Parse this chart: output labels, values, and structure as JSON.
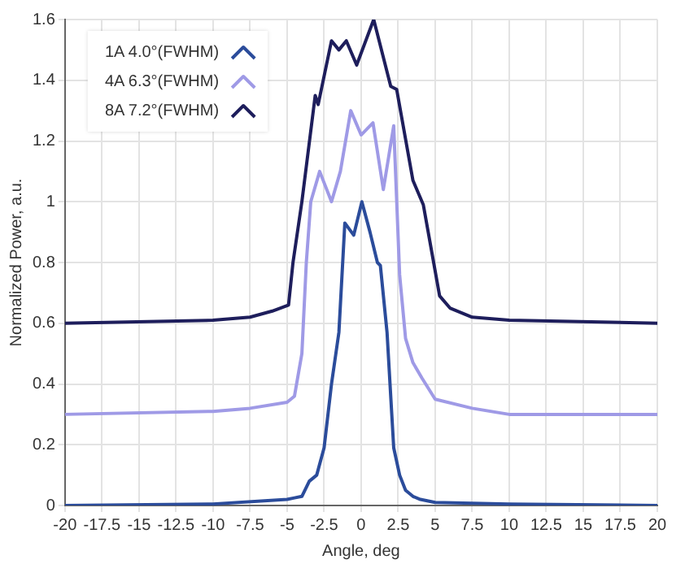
{
  "chart_data": {
    "type": "line",
    "xlabel": "Angle, deg",
    "ylabel": "Normalized Power, a.u.",
    "xlim": [
      -20,
      20
    ],
    "xticks": [
      -20,
      -17.5,
      -15,
      -12.5,
      -10,
      -7.5,
      -5,
      -2.5,
      0,
      2.5,
      5,
      7.5,
      10,
      12.5,
      15,
      17.5,
      20
    ],
    "ylim": [
      0,
      1.6
    ],
    "yticks": [
      0,
      0.2,
      0.4,
      0.6,
      0.8,
      1,
      1.2,
      1.4,
      1.6
    ],
    "grid": true,
    "legend": "top left",
    "marker": "none",
    "line_style": "solid",
    "series": [
      {
        "name": "1A 4.0°(FWHM)",
        "color": "#2b4c9b",
        "x": [
          -20,
          -10,
          -5,
          -4.5,
          -4,
          -3.5,
          -3,
          -2.5,
          -2,
          -1.5,
          -1.1,
          -0.5,
          0.05,
          0.6,
          1.1,
          1.3,
          1.75,
          2.2,
          2.6,
          3,
          3.5,
          4,
          5,
          10,
          20
        ],
        "values": [
          0,
          0.005,
          0.02,
          0.025,
          0.03,
          0.08,
          0.1,
          0.19,
          0.4,
          0.57,
          0.93,
          0.89,
          1.0,
          0.9,
          0.8,
          0.79,
          0.57,
          0.19,
          0.1,
          0.05,
          0.03,
          0.02,
          0.01,
          0.005,
          0
        ]
      },
      {
        "name": "4A 6.3°(FWHM)",
        "color": "#9f9ae6",
        "x": [
          -20,
          -10,
          -7.5,
          -5,
          -4.5,
          -4,
          -3.7,
          -3.4,
          -2.8,
          -2,
          -1.4,
          -0.7,
          0,
          0.8,
          1.5,
          2.2,
          2.6,
          3,
          3.5,
          4.1,
          5,
          7.5,
          10,
          20
        ],
        "values": [
          0.3,
          0.31,
          0.32,
          0.34,
          0.36,
          0.5,
          0.8,
          1.0,
          1.1,
          1.0,
          1.1,
          1.3,
          1.22,
          1.26,
          1.04,
          1.25,
          0.76,
          0.55,
          0.47,
          0.42,
          0.35,
          0.32,
          0.3,
          0.3
        ]
      },
      {
        "name": "8A 7.2°(FWHM)",
        "color": "#1e1e5c",
        "x": [
          -20,
          -10,
          -7.5,
          -6,
          -4.9,
          -4.6,
          -4,
          -3.1,
          -2.9,
          -2,
          -1.5,
          -1,
          -0.3,
          0.85,
          2,
          2.4,
          3.5,
          4.2,
          5.3,
          6,
          7.5,
          10,
          20
        ],
        "values": [
          0.6,
          0.61,
          0.62,
          0.64,
          0.66,
          0.8,
          1.0,
          1.35,
          1.32,
          1.53,
          1.5,
          1.53,
          1.45,
          1.6,
          1.38,
          1.37,
          1.07,
          0.99,
          0.69,
          0.65,
          0.62,
          0.61,
          0.6
        ]
      }
    ]
  }
}
